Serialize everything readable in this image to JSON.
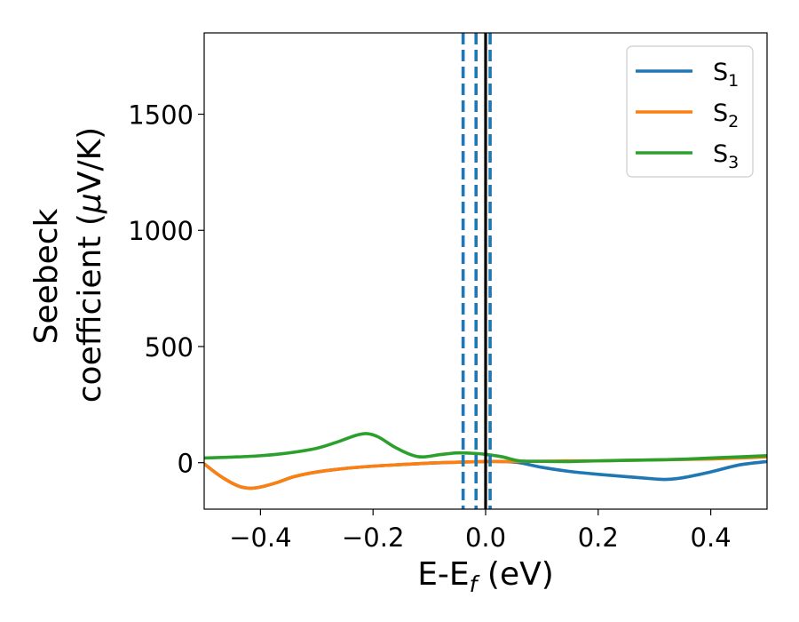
{
  "chart_data": {
    "type": "line",
    "xlabel": {
      "main": "E-E",
      "sub": "f",
      "tail": " (eV)"
    },
    "ylabel": {
      "line1": "Seebeck",
      "line2_pre": "coefficient  (",
      "mu": "μ",
      "line2_post": "V/K)"
    },
    "xlim": [
      -0.5,
      0.5
    ],
    "ylim": [
      -200,
      1850
    ],
    "xticks": [
      -0.4,
      -0.2,
      0.0,
      0.2,
      0.4
    ],
    "xtick_labels": [
      "−0.4",
      "−0.2",
      "0.0",
      "0.2",
      "0.4"
    ],
    "yticks": [
      0,
      500,
      1000,
      1500
    ],
    "ytick_labels": [
      "0",
      "500",
      "1000",
      "1500"
    ],
    "legend_position": "top-right",
    "grid": false,
    "series": [
      {
        "name": "S",
        "sub": "1",
        "color": "#1f77b4",
        "x": [
          -0.5,
          -0.47,
          -0.44,
          -0.42,
          -0.4,
          -0.37,
          -0.34,
          -0.3,
          -0.25,
          -0.2,
          -0.15,
          -0.1,
          -0.05,
          0.0,
          0.03,
          0.06,
          0.1,
          0.15,
          0.2,
          0.25,
          0.3,
          0.32,
          0.35,
          0.4,
          0.45,
          0.5
        ],
        "y": [
          -5,
          -60,
          -100,
          -110,
          -105,
          -85,
          -60,
          -40,
          -25,
          -15,
          -8,
          -2,
          2,
          5,
          5,
          0,
          -20,
          -38,
          -50,
          -60,
          -70,
          -72,
          -65,
          -40,
          -10,
          5
        ]
      },
      {
        "name": "S",
        "sub": "2",
        "color": "#ff7f0e",
        "x": [
          -0.5,
          -0.47,
          -0.44,
          -0.42,
          -0.4,
          -0.37,
          -0.34,
          -0.3,
          -0.25,
          -0.2,
          -0.15,
          -0.1,
          -0.05,
          0.0,
          0.03,
          0.06,
          0.1,
          0.15,
          0.2,
          0.25,
          0.3,
          0.35,
          0.4,
          0.45,
          0.5
        ],
        "y": [
          -5,
          -60,
          -100,
          -110,
          -105,
          -85,
          -60,
          -40,
          -25,
          -15,
          -8,
          -2,
          2,
          5,
          5,
          6,
          6,
          8,
          8,
          10,
          12,
          14,
          16,
          20,
          25
        ]
      },
      {
        "name": "S",
        "sub": "3",
        "color": "#2ca02c",
        "x": [
          -0.5,
          -0.45,
          -0.4,
          -0.35,
          -0.3,
          -0.26,
          -0.23,
          -0.21,
          -0.19,
          -0.16,
          -0.13,
          -0.11,
          -0.08,
          -0.05,
          -0.02,
          0.0,
          0.03,
          0.06,
          0.1,
          0.15,
          0.2,
          0.25,
          0.3,
          0.35,
          0.4,
          0.45,
          0.5
        ],
        "y": [
          20,
          24,
          30,
          42,
          62,
          92,
          118,
          125,
          110,
          65,
          32,
          25,
          35,
          42,
          40,
          36,
          25,
          8,
          6,
          5,
          8,
          10,
          12,
          15,
          20,
          25,
          30
        ]
      }
    ],
    "vlines": [
      {
        "x": -0.04,
        "color": "#1f77b4",
        "style": "dashed"
      },
      {
        "x": -0.017,
        "color": "#1f77b4",
        "style": "dashed"
      },
      {
        "x": 0.008,
        "color": "#1f77b4",
        "style": "dashed"
      },
      {
        "x": 0.0,
        "color": "#000000",
        "style": "solid"
      }
    ]
  }
}
